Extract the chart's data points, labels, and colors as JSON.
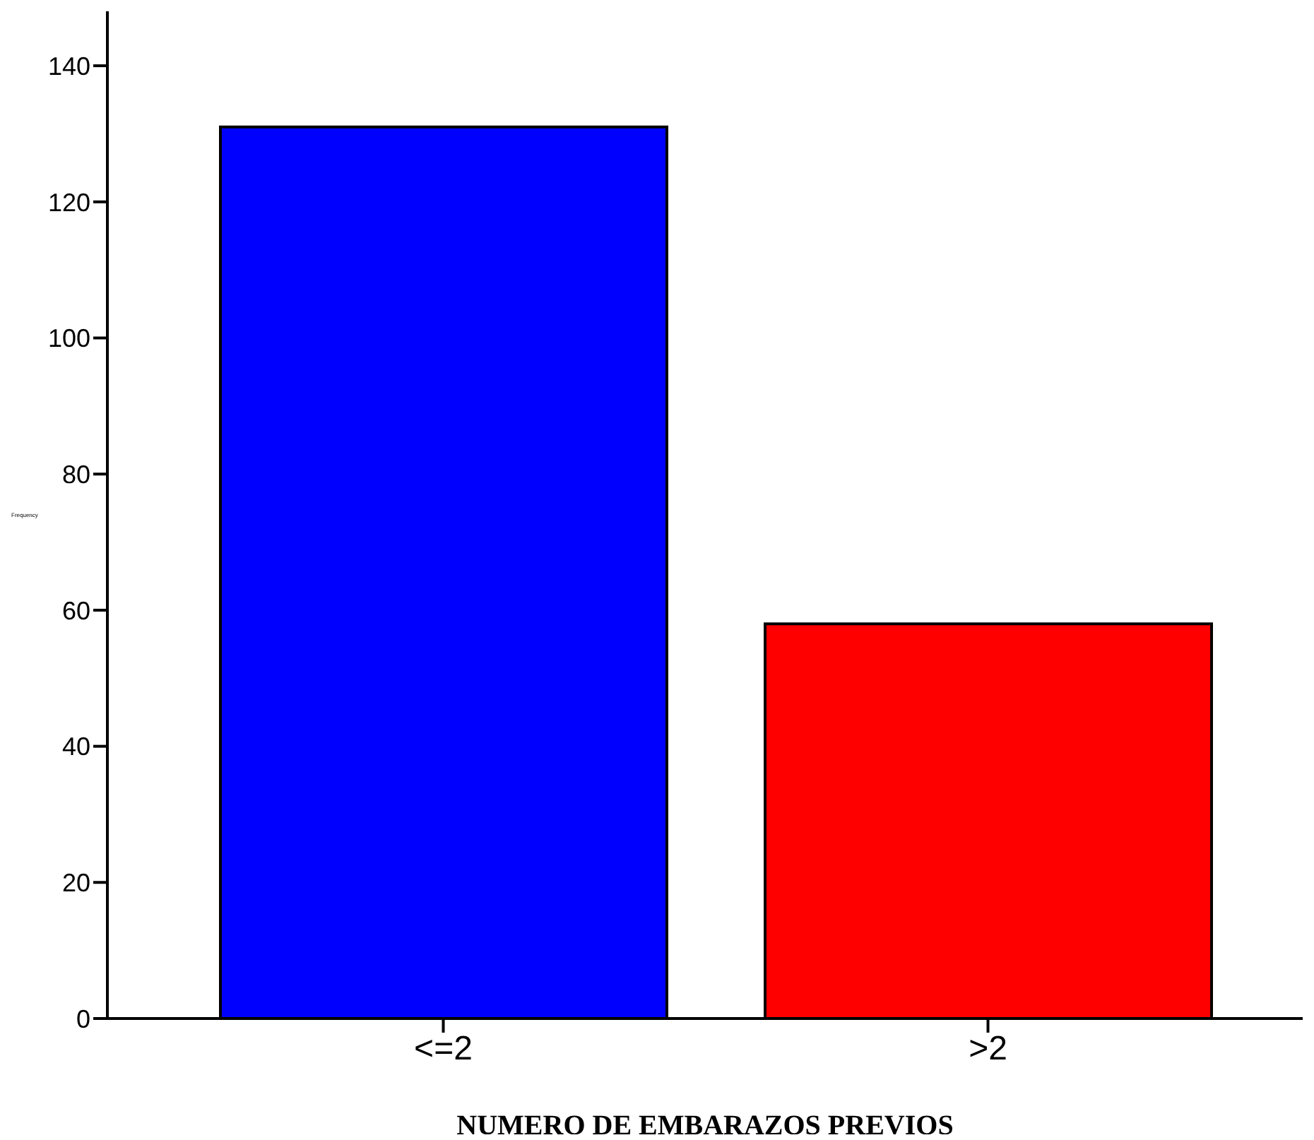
{
  "chart_data": {
    "type": "bar",
    "xlabel": "NUMERO DE EMBARAZOS PREVIOS",
    "ylabel": "Frequency",
    "categories": [
      "<=2",
      ">2"
    ],
    "values": [
      131,
      58
    ],
    "colors": [
      "#0000ff",
      "#ff0000"
    ],
    "ylim": [
      0,
      148
    ],
    "yticks": [
      0,
      20,
      40,
      60,
      80,
      100,
      120,
      140
    ],
    "grid": false
  }
}
